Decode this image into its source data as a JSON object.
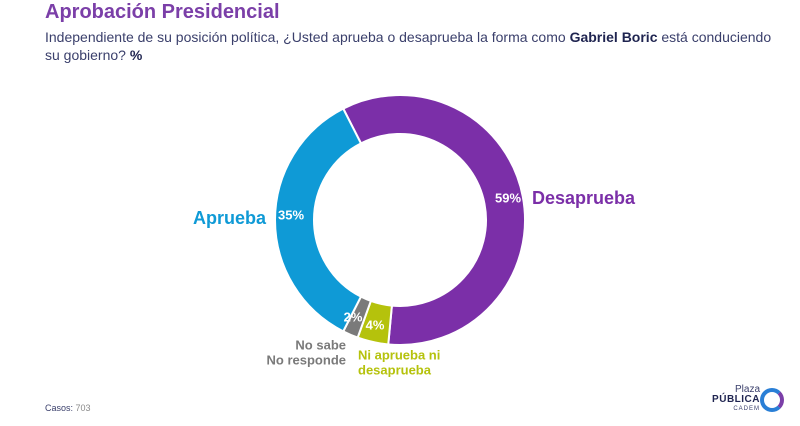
{
  "header": {
    "title": "Aprobación Presidencial",
    "subtitle_pre": "Independiente de su posición política, ¿Usted aprueba o desaprueba la forma como ",
    "subtitle_bold": "Gabriel Boric",
    "subtitle_post": " está conduciendo su gobierno? ",
    "subtitle_unit": "%"
  },
  "chart_data": {
    "type": "pie",
    "donut": true,
    "title": "Aprobación Presidencial",
    "unit": "%",
    "slices": [
      {
        "label": "Desaprueba",
        "value": 59,
        "value_label": "59%",
        "color": "#7b2fa8"
      },
      {
        "label": "Ni aprueba ni desaprueba",
        "value": 4,
        "value_label": "4%",
        "color": "#b5c20c"
      },
      {
        "label": "No sabe No responde",
        "value": 2,
        "value_label": "2%",
        "color": "#7a7a7a"
      },
      {
        "label": "Aprueba",
        "value": 35,
        "value_label": "35%",
        "color": "#0f9ad6"
      }
    ]
  },
  "footer": {
    "casos_label": "Casos:",
    "casos_value": "703"
  },
  "logo": {
    "line1": "Plaza",
    "line2": "PÚBLICA",
    "line3": "CADEM",
    "colors": {
      "blue": "#2a7fd6",
      "purple": "#7b3fa8"
    }
  }
}
